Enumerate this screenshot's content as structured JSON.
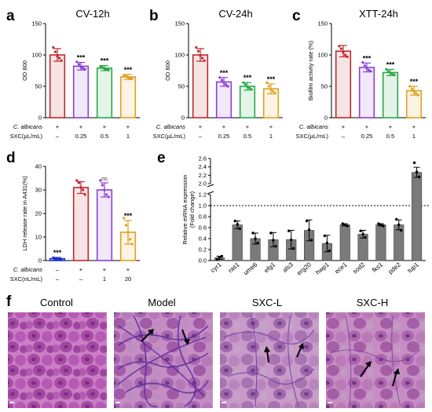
{
  "panel_letters": [
    "a",
    "b",
    "c",
    "d",
    "e",
    "f"
  ],
  "cond_labels": {
    "calbicans": "C. albicans",
    "sxc_ul": "SXC(µL/mL)",
    "sxc_nl": "SXC(nL/mL)"
  },
  "colors": {
    "control": "#c1272d",
    "g1": "#8b3fd6",
    "g2": "#2aa84a",
    "g3": "#e0a020",
    "d_control": "#2030d0",
    "gray_bar": "#7a7a7a"
  },
  "chart_data": [
    {
      "id": "a",
      "type": "bar",
      "title": "CV-12h",
      "ylabel": "OD 600",
      "ylim": [
        0,
        150
      ],
      "yticks": [
        0,
        50,
        100,
        150
      ],
      "calbicans": [
        "+",
        "+",
        "+",
        "+"
      ],
      "dose": [
        "–",
        "0.25",
        "0.5",
        "1"
      ],
      "values": [
        100,
        82,
        79,
        65
      ],
      "errors": [
        10,
        6,
        4,
        4
      ],
      "points": [
        [
          112,
          105,
          98,
          95,
          91
        ],
        [
          89,
          85,
          81,
          79,
          77
        ],
        [
          82,
          80,
          78,
          77,
          76
        ],
        [
          68,
          66,
          64,
          63,
          62
        ]
      ],
      "sig": [
        "",
        "***",
        "***",
        "***"
      ]
    },
    {
      "id": "b",
      "type": "bar",
      "title": "CV-24h",
      "ylabel": "OD 600",
      "ylim": [
        0,
        150
      ],
      "yticks": [
        0,
        50,
        100,
        150
      ],
      "calbicans": [
        "+",
        "+",
        "+",
        "+"
      ],
      "dose": [
        "–",
        "0.25",
        "0.5",
        "1"
      ],
      "values": [
        100,
        57,
        50,
        46
      ],
      "errors": [
        10,
        7,
        6,
        8
      ],
      "points": [
        [
          112,
          106,
          99,
          95,
          91
        ],
        [
          64,
          60,
          56,
          53,
          50
        ],
        [
          56,
          53,
          49,
          47,
          45
        ],
        [
          56,
          50,
          45,
          42,
          39
        ]
      ],
      "sig": [
        "",
        "***",
        "***",
        "***"
      ]
    },
    {
      "id": "c",
      "type": "bar",
      "title": "XTT-24h",
      "ylabel": "Biofilm activity rate (%)",
      "ylim": [
        0,
        150
      ],
      "yticks": [
        0,
        50,
        100,
        150
      ],
      "calbicans": [
        "+",
        "+",
        "+",
        "+"
      ],
      "dose": [
        "–",
        "0.25",
        "0.5",
        "1"
      ],
      "values": [
        106,
        80,
        72,
        43
      ],
      "errors": [
        9,
        7,
        5,
        7
      ],
      "points": [
        [
          114,
          110,
          104,
          100,
          97
        ],
        [
          88,
          83,
          79,
          76,
          74
        ],
        [
          77,
          74,
          71,
          70,
          68
        ],
        [
          50,
          46,
          42,
          39,
          36
        ]
      ],
      "sig": [
        "",
        "***",
        "***",
        "***"
      ]
    },
    {
      "id": "d",
      "type": "bar",
      "ylabel": "LDH release rate in A431(%)",
      "ylim": [
        0,
        40
      ],
      "yticks": [
        0,
        10,
        20,
        30,
        40
      ],
      "calbicans": [
        "–",
        "+",
        "+",
        "+"
      ],
      "dose": [
        "–",
        "–",
        "1",
        "20"
      ],
      "values": [
        0.8,
        31,
        30,
        12
      ],
      "errors": [
        0.5,
        2.5,
        3,
        5
      ],
      "points": [
        [
          1.2,
          1.0,
          0.8,
          0.6,
          0.5
        ],
        [
          34,
          33,
          31,
          30,
          28
        ],
        [
          34,
          32,
          30,
          28,
          27
        ],
        [
          18,
          15,
          12,
          9,
          7
        ]
      ],
      "sig": [
        "***",
        "",
        "ns",
        "***"
      ]
    },
    {
      "id": "e",
      "type": "bar",
      "ylabel": "Relative mRNA expression",
      "ylabel2": "(Fold change)",
      "ylim": [
        0,
        2.6
      ],
      "yticks": [
        "0.0",
        "0.2",
        "0.4",
        "0.6",
        "0.8",
        "1.0",
        "1.2",
        "2.0",
        "2.2",
        "2.4",
        "2.6"
      ],
      "axis_break": [
        1.2,
        2.0
      ],
      "reference_line": 1.0,
      "categories": [
        "cyr1",
        "ras1",
        "ume6",
        "efg1",
        "als3",
        "erg20",
        "hwp1",
        "ece1",
        "sod2",
        "fks1",
        "pde2",
        "tup1"
      ],
      "values": [
        0.05,
        0.65,
        0.4,
        0.38,
        0.38,
        0.55,
        0.31,
        0.65,
        0.48,
        0.65,
        0.65,
        2.27
      ],
      "errors": [
        0.03,
        0.07,
        0.1,
        0.13,
        0.17,
        0.19,
        0.15,
        0.02,
        0.07,
        0.02,
        0.09,
        0.12
      ],
      "points": [
        [
          0.02,
          0.06,
          0.08
        ],
        [
          0.72,
          0.66,
          0.58
        ],
        [
          0.5,
          0.4,
          0.32
        ],
        [
          0.5,
          0.37,
          0.26
        ],
        [
          0.54,
          0.38,
          0.22
        ],
        [
          0.72,
          0.56,
          0.37
        ],
        [
          0.45,
          0.32,
          0.18
        ],
        [
          0.67,
          0.65,
          0.63
        ],
        [
          0.54,
          0.48,
          0.42
        ],
        [
          0.67,
          0.65,
          0.63
        ],
        [
          0.75,
          0.65,
          0.55
        ],
        [
          2.5,
          2.28,
          2.16
        ]
      ]
    }
  ],
  "micrographs": {
    "labels": [
      "Control",
      "Model",
      "SXC-L",
      "SXC-H"
    ]
  }
}
